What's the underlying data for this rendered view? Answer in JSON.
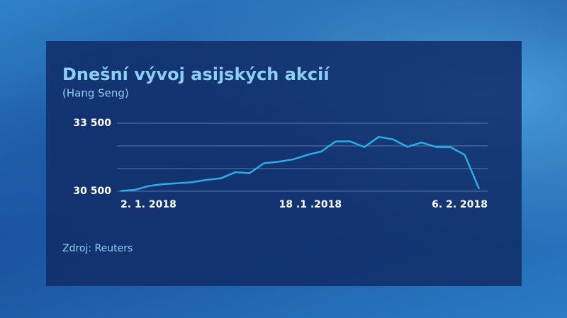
{
  "chart_data": {
    "type": "line",
    "title": "Dnešní vývoj asijských akcií",
    "subtitle": "(Hang Seng)",
    "source": "Zdroj: Reuters",
    "categories": [
      "2. 1. 2018",
      null,
      null,
      null,
      null,
      null,
      null,
      null,
      null,
      null,
      null,
      null,
      "18 .1 .2018",
      null,
      null,
      null,
      null,
      null,
      null,
      null,
      null,
      null,
      null,
      null,
      null,
      "6. 2. 2018"
    ],
    "series": [
      {
        "name": "Hang Seng",
        "color": "#2aaee8",
        "values": [
          30515,
          30560,
          30736,
          30814,
          30855,
          30900,
          31000,
          31073,
          31338,
          31300,
          31735,
          31800,
          31900,
          32100,
          32254,
          32700,
          32700,
          32450,
          32900,
          32790,
          32460,
          32650,
          32450,
          32450,
          32100,
          30600
        ]
      }
    ],
    "ylim": [
      30500,
      33500
    ],
    "yticks": [
      {
        "value": 30500,
        "label": "30 500"
      },
      {
        "value": 33500,
        "label": "33 500"
      }
    ],
    "gridlines": [
      30500,
      31500,
      32500,
      33500
    ],
    "grid": true
  }
}
